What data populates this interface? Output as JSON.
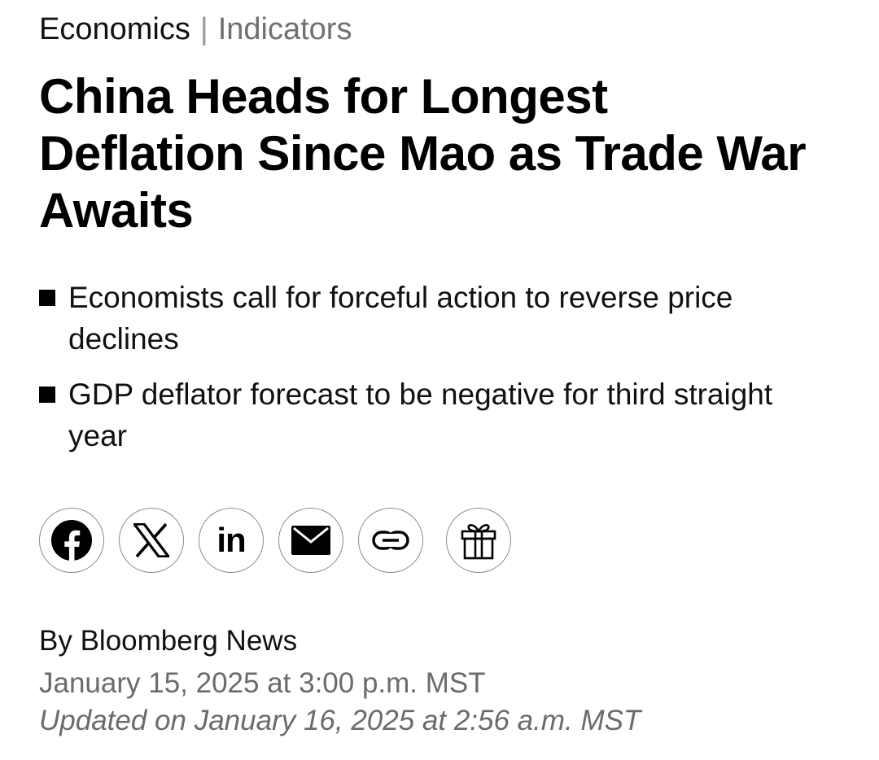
{
  "breadcrumb": {
    "section": "Economics",
    "separator": "|",
    "subsection": "Indicators"
  },
  "headline": "China Heads for Longest Deflation Since Mao as Trade War Awaits",
  "bullets": [
    "Economists call for forceful action to reverse price declines",
    "GDP deflator forecast to be negative for third straight year"
  ],
  "share": {
    "icons": [
      "facebook-icon",
      "x-icon",
      "linkedin-icon",
      "email-icon",
      "link-icon",
      "gift-icon"
    ],
    "linkedin_text": "in"
  },
  "byline": "By Bloomberg News",
  "published": "January 15, 2025 at 3:00 p.m. MST",
  "updated": "Updated on January 16, 2025 at 2:56 a.m. MST",
  "colors": {
    "text": "#000000",
    "muted": "#6b6b6b",
    "border": "#8a8a8a"
  }
}
